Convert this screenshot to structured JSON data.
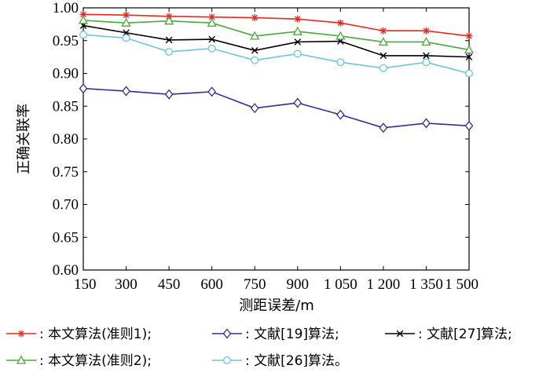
{
  "chart_data": {
    "type": "line",
    "title": "",
    "xlabel": "测距误差/m",
    "ylabel": "正确关联率",
    "x": [
      150,
      300,
      450,
      600,
      750,
      900,
      1050,
      1200,
      1350,
      1500
    ],
    "x_tick_labels": [
      "150",
      "300",
      "450",
      "600",
      "750",
      "900",
      "1 050",
      "1 200",
      "1 350",
      "1 500"
    ],
    "y_tick_labels": [
      "0.60",
      "0.65",
      "0.70",
      "0.75",
      "0.80",
      "0.85",
      "0.90",
      "0.95",
      "1.00"
    ],
    "y_ticks": [
      0.6,
      0.65,
      0.7,
      0.75,
      0.8,
      0.85,
      0.9,
      0.95,
      1.0
    ],
    "xlim": [
      150,
      1500
    ],
    "ylim": [
      0.6,
      1.0
    ],
    "grid": false,
    "legend_position": "bottom",
    "series": [
      {
        "name": "本文算法(准则1);",
        "color": "#e8281e",
        "marker": "asterisk",
        "values": [
          0.99,
          0.989,
          0.987,
          0.986,
          0.985,
          0.983,
          0.977,
          0.965,
          0.965,
          0.957
        ]
      },
      {
        "name": "文献[19]算法;",
        "color": "#2e2e9e",
        "marker": "diamond",
        "values": [
          0.877,
          0.873,
          0.868,
          0.872,
          0.847,
          0.855,
          0.837,
          0.817,
          0.824,
          0.82
        ]
      },
      {
        "name": "文献[27]算法;",
        "color": "#000000",
        "marker": "x",
        "values": [
          0.973,
          0.962,
          0.951,
          0.952,
          0.935,
          0.948,
          0.949,
          0.927,
          0.927,
          0.925
        ]
      },
      {
        "name": "本文算法(准则2);",
        "color": "#4aaa3a",
        "marker": "triangle",
        "values": [
          0.981,
          0.977,
          0.98,
          0.977,
          0.957,
          0.964,
          0.957,
          0.948,
          0.948,
          0.936
        ]
      },
      {
        "name": "文献[26]算法。",
        "color": "#6cc6d8",
        "marker": "circle",
        "values": [
          0.959,
          0.954,
          0.933,
          0.938,
          0.92,
          0.93,
          0.917,
          0.908,
          0.917,
          0.9
        ]
      }
    ]
  }
}
